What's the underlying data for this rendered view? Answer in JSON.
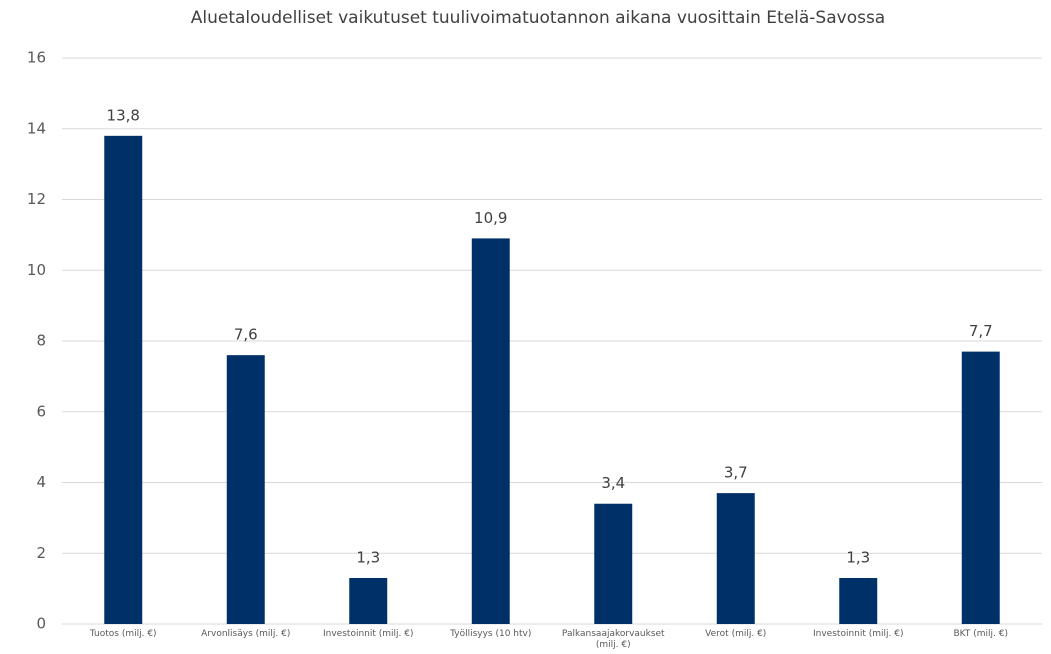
{
  "chart_data": {
    "type": "bar",
    "title": "Aluetaloudelliset vaikutuset tuulivoimatuotannon aikana vuosittain Etelä-Savossa",
    "categories": [
      "Tuotos (milj. €)",
      "Arvonlisäys  (milj. €)",
      "Investoinnit  (milj. €)",
      "Työllisyys (10 htv)",
      "Palkansaajakorvaukset (milj. €)",
      "Verot (milj. €)",
      "Investoinnit  (milj. €)",
      "BKT (milj. €)"
    ],
    "values": [
      13.8,
      7.6,
      1.3,
      10.9,
      3.4,
      3.7,
      1.3,
      7.7
    ],
    "value_labels": [
      "13,8",
      "7,6",
      "1,3",
      "10,9",
      "3,4",
      "3,7",
      "1,3",
      "7,7"
    ],
    "color": "#003068",
    "ylim": [
      0,
      16
    ],
    "yticks": [
      0,
      2,
      4,
      6,
      8,
      10,
      12,
      14,
      16
    ],
    "grid": true
  }
}
